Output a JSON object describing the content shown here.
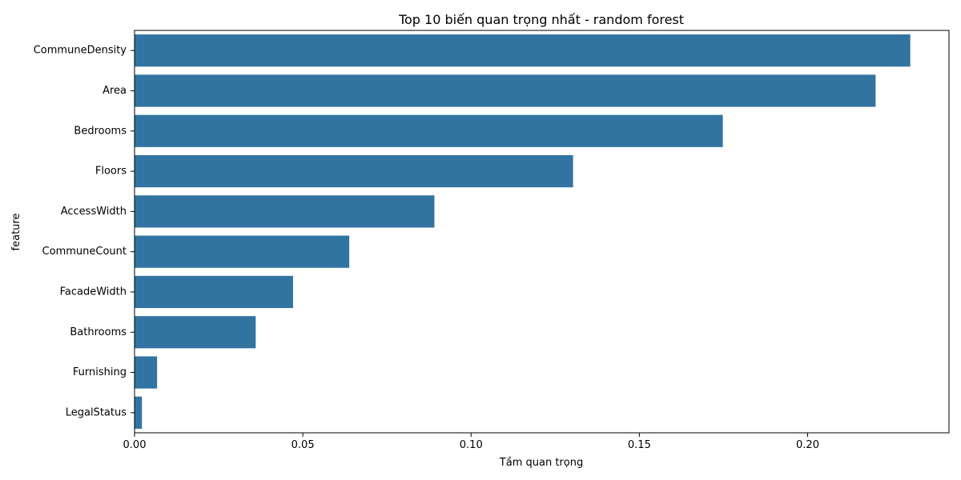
{
  "chart_data": {
    "type": "bar",
    "orientation": "horizontal",
    "title": "Top 10 biến quan trọng nhất - random forest",
    "xlabel": "Tầm quan trọng",
    "ylabel": "feature",
    "categories": [
      "CommuneDensity",
      "Area",
      "Bedrooms",
      "Floors",
      "AccessWidth",
      "CommuneCount",
      "FacadeWidth",
      "Bathrooms",
      "Furnishing",
      "LegalStatus"
    ],
    "values": [
      0.2305,
      0.2202,
      0.1748,
      0.1303,
      0.0891,
      0.0638,
      0.0471,
      0.036,
      0.0067,
      0.0022
    ],
    "xlim": [
      0,
      0.242
    ],
    "xticks": [
      0.0,
      0.05,
      0.1,
      0.15,
      0.2
    ],
    "xtick_labels": [
      "0.00",
      "0.05",
      "0.10",
      "0.15",
      "0.20"
    ],
    "bar_color": "#3274a1",
    "grid": false
  }
}
